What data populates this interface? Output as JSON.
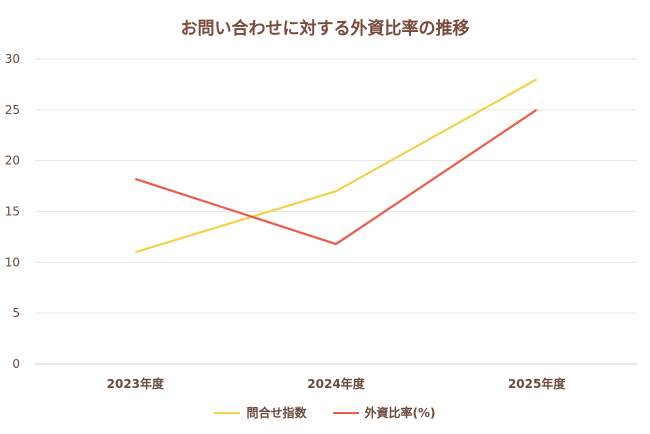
{
  "chart_data": {
    "type": "line",
    "title": "お問い合わせに対する外資比率の推移",
    "categories": [
      "2023年度",
      "2024年度",
      "2025年度"
    ],
    "ylim": [
      0,
      30
    ],
    "yticks": [
      0,
      5,
      10,
      15,
      20,
      25,
      30
    ],
    "grid": true,
    "legend_position": "bottom",
    "series": [
      {
        "name": "問合せ指数",
        "color": "#f3d24b",
        "values": [
          11,
          17,
          28
        ]
      },
      {
        "name": "外資比率(%)",
        "color": "#ee5b4a",
        "values": [
          18.2,
          11.8,
          25
        ]
      }
    ]
  }
}
